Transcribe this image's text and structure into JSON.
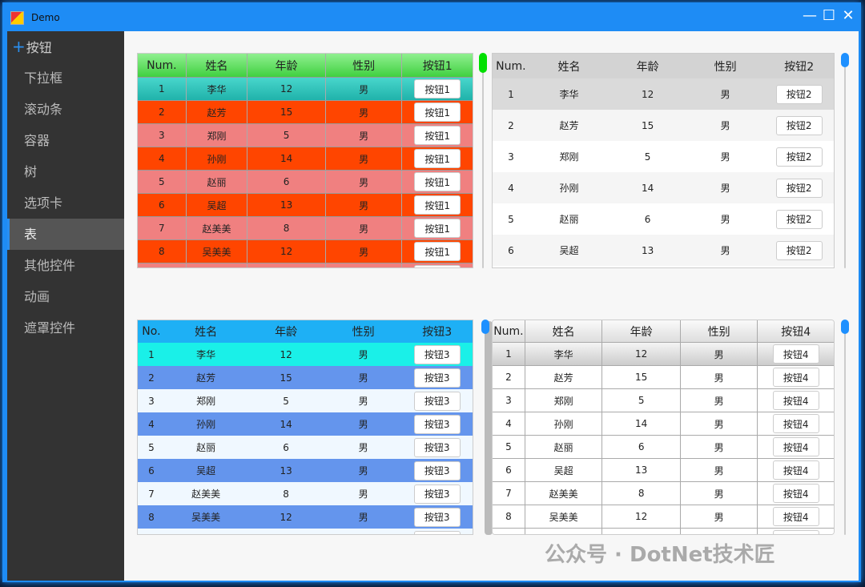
{
  "window": {
    "title": "Demo",
    "minimize": "—",
    "maximize": "☐",
    "close": "✕"
  },
  "sidebar": {
    "items": [
      {
        "label": "按钮",
        "icon": "plus-icon",
        "active": false
      },
      {
        "label": "下拉框"
      },
      {
        "label": "滚动条"
      },
      {
        "label": "容器"
      },
      {
        "label": "树"
      },
      {
        "label": "选项卡"
      },
      {
        "label": "表",
        "active": true
      },
      {
        "label": "其他控件"
      },
      {
        "label": "动画"
      },
      {
        "label": "遮罩控件"
      }
    ]
  },
  "rows": [
    {
      "num": "1",
      "name": "李华",
      "age": "12",
      "sex": "男"
    },
    {
      "num": "2",
      "name": "赵芳",
      "age": "15",
      "sex": "男"
    },
    {
      "num": "3",
      "name": "郑刚",
      "age": "5",
      "sex": "男"
    },
    {
      "num": "4",
      "name": "孙刚",
      "age": "14",
      "sex": "男"
    },
    {
      "num": "5",
      "name": "赵丽",
      "age": "6",
      "sex": "男"
    },
    {
      "num": "6",
      "name": "吴超",
      "age": "13",
      "sex": "男"
    },
    {
      "num": "7",
      "name": "赵美美",
      "age": "8",
      "sex": "男"
    },
    {
      "num": "8",
      "name": "吴美美",
      "age": "12",
      "sex": "男"
    },
    {
      "num": "9",
      "name": "",
      "age": "",
      "sex": ""
    }
  ],
  "tables": [
    {
      "headers": [
        "Num.",
        "姓名",
        "年龄",
        "性别",
        "按钮1"
      ],
      "button": "按钮1",
      "colors": {
        "header": "#5fe05f",
        "selected": "#2ec4b6",
        "odd": "#ff4500",
        "even": "#f08080",
        "thumb": "#00e000"
      }
    },
    {
      "headers": [
        "Num.",
        "姓名",
        "年龄",
        "性别",
        "按钮2"
      ],
      "button": "按钮2",
      "colors": {
        "header": "#d3d3d3",
        "selected": "#dadada",
        "odd": "#f5f5f5",
        "even": "#ffffff",
        "thumb": "#1e90ff"
      }
    },
    {
      "headers": [
        "No.",
        "姓名",
        "年龄",
        "性别",
        "按钮3"
      ],
      "button": "按钮3",
      "colors": {
        "header": "#1eb0f5",
        "selected": "#1af0e8",
        "odd": "#6495ed",
        "even": "#f0f8ff",
        "thumb": "#1e90ff"
      }
    },
    {
      "headers": [
        "Num.",
        "姓名",
        "年龄",
        "性别",
        "按钮4"
      ],
      "button": "按钮4",
      "colors": {
        "header": "#e8e8e8",
        "selected": "#d8d8d8",
        "odd": "#ffffff",
        "even": "#ffffff",
        "thumb": "#1e90ff"
      }
    }
  ],
  "watermark": "公众号 · DotNet技术匠"
}
